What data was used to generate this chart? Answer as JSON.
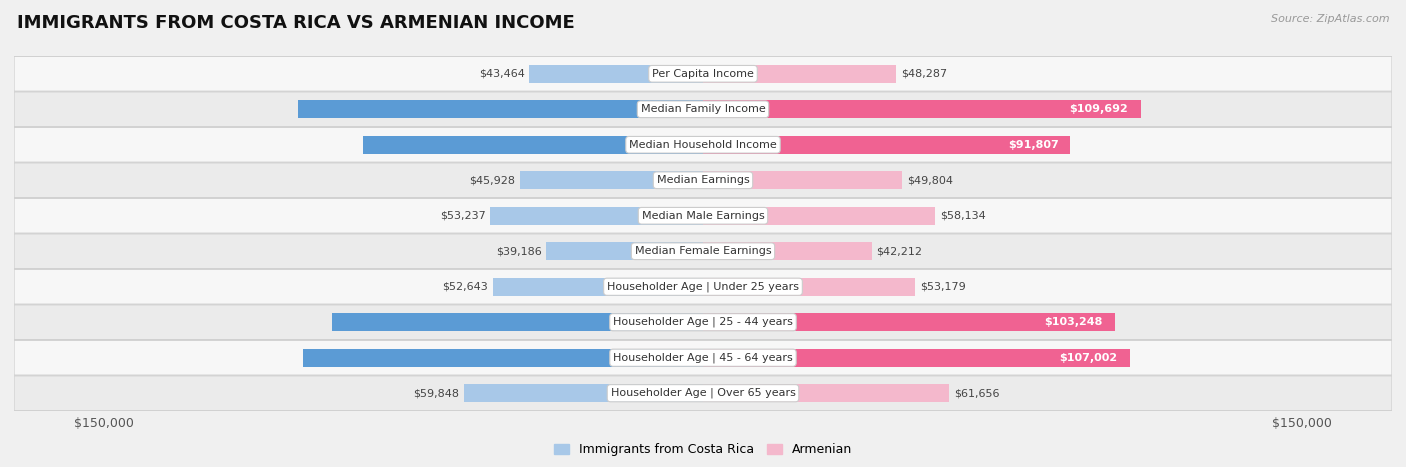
{
  "title": "IMMIGRANTS FROM COSTA RICA VS ARMENIAN INCOME",
  "source": "Source: ZipAtlas.com",
  "categories": [
    "Per Capita Income",
    "Median Family Income",
    "Median Household Income",
    "Median Earnings",
    "Median Male Earnings",
    "Median Female Earnings",
    "Householder Age | Under 25 years",
    "Householder Age | 25 - 44 years",
    "Householder Age | 45 - 64 years",
    "Householder Age | Over 65 years"
  ],
  "costa_rica_values": [
    43464,
    101354,
    85054,
    45928,
    53237,
    39186,
    52643,
    92876,
    100141,
    59848
  ],
  "armenian_values": [
    48287,
    109692,
    91807,
    49804,
    58134,
    42212,
    53179,
    103248,
    107002,
    61656
  ],
  "costa_rica_color_light": "#a8c8e8",
  "costa_rica_color_solid": "#5b9bd5",
  "armenian_color_light": "#f4b8cc",
  "armenian_color_solid": "#f06292",
  "max_value": 150000,
  "background_color": "#f0f0f0",
  "row_bg_even": "#f7f7f7",
  "row_bg_odd": "#ebebeb",
  "threshold_large": 0.45,
  "title_fontsize": 13,
  "label_fontsize": 8,
  "value_fontsize": 8,
  "legend_fontsize": 9,
  "figsize": [
    14.06,
    4.67
  ],
  "dpi": 100
}
